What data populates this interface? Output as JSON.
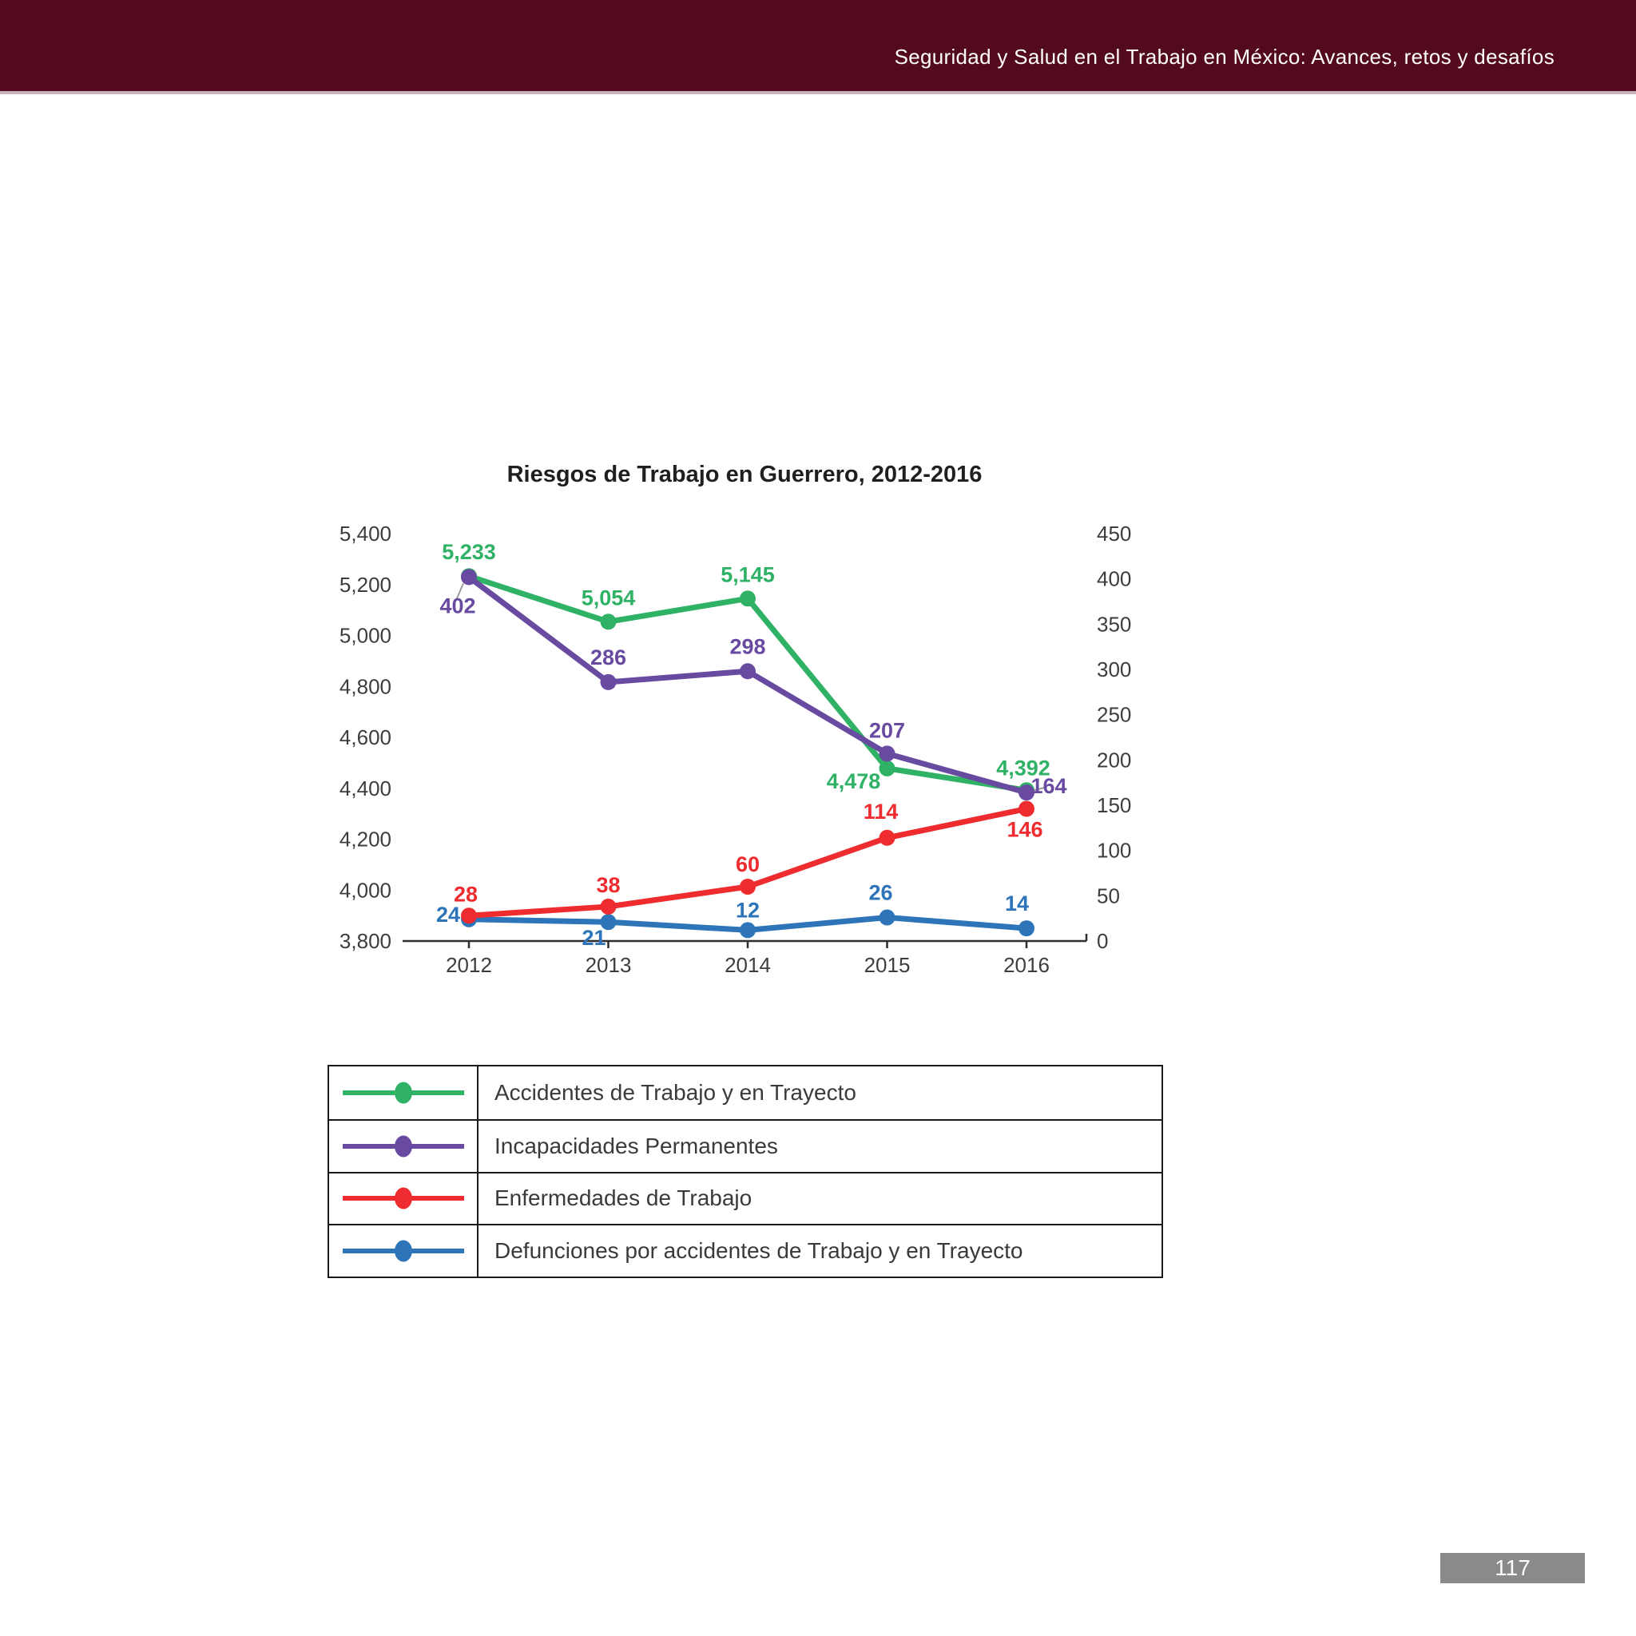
{
  "header": {
    "title": "Seguridad y Salud en el Trabajo en México: Avances, retos y desafíos"
  },
  "chart_data": {
    "type": "line",
    "title": "Riesgos de Trabajo en Guerrero, 2012-2016",
    "categories": [
      "2012",
      "2013",
      "2014",
      "2015",
      "2016"
    ],
    "grid": false,
    "legend_position": "bottom-table",
    "left_axis": {
      "min": 3800,
      "max": 5400,
      "step": 200,
      "ticks": [
        "5,400",
        "5,200",
        "5,000",
        "4,800",
        "4,600",
        "4,400",
        "4,200",
        "4,000",
        "3,800"
      ]
    },
    "right_axis": {
      "min": 0,
      "max": 450,
      "step": 50,
      "ticks": [
        "450",
        "400",
        "350",
        "300",
        "250",
        "200",
        "150",
        "100",
        "50",
        "0"
      ]
    },
    "series": [
      {
        "name": "Accidentes de Trabajo y en Trayecto",
        "axis": "left",
        "color": "#30B266",
        "values": [
          5233,
          5054,
          5145,
          4478,
          4392
        ],
        "labels": [
          "5,233",
          "5,054",
          "5,145",
          "4,478",
          "4,392"
        ]
      },
      {
        "name": "Incapacidades Permanentes",
        "axis": "right",
        "color": "#684AA0",
        "values": [
          402,
          286,
          298,
          207,
          164
        ],
        "labels": [
          "402",
          "286",
          "298",
          "207",
          "164"
        ]
      },
      {
        "name": "Enfermedades de Trabajo",
        "axis": "right",
        "color": "#EE2B2F",
        "values": [
          28,
          38,
          60,
          114,
          146
        ],
        "labels": [
          "28",
          "38",
          "60",
          "114",
          "146"
        ]
      },
      {
        "name": "Defunciones por accidentes de Trabajo y en Trayecto",
        "axis": "right",
        "color": "#2E74B9",
        "values": [
          24,
          21,
          12,
          26,
          14
        ],
        "labels": [
          "24",
          "21",
          "12",
          "26",
          "14"
        ]
      }
    ]
  },
  "footer": {
    "page_number": "117"
  }
}
